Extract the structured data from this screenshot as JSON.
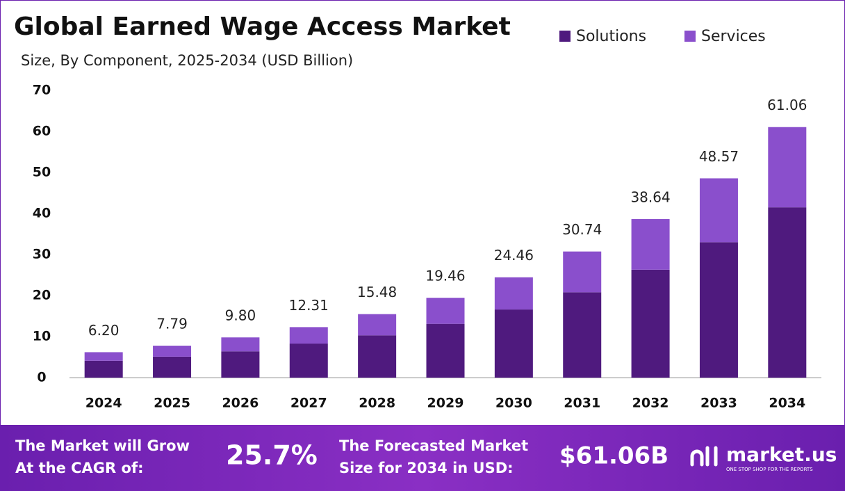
{
  "chart_data": {
    "type": "stacked_bar",
    "title": "Global Earned Wage Access Market",
    "subtitle": "Size, By Component, 2025-2034 (USD Billion)",
    "categories": [
      "2024",
      "2025",
      "2026",
      "2027",
      "2028",
      "2029",
      "2030",
      "2031",
      "2032",
      "2033",
      "2034"
    ],
    "series": [
      {
        "name": "Solutions",
        "color": "#4f1a7e",
        "values": [
          4.1,
          5.1,
          6.4,
          8.3,
          10.3,
          13.1,
          16.6,
          20.8,
          26.3,
          33.0,
          41.5
        ]
      },
      {
        "name": "Services",
        "color": "#8a4fcc",
        "values": [
          2.1,
          2.69,
          3.4,
          4.01,
          5.18,
          6.36,
          7.86,
          9.94,
          12.34,
          15.57,
          19.56
        ]
      }
    ],
    "total_values": [
      6.2,
      7.79,
      9.8,
      12.31,
      15.48,
      19.46,
      24.46,
      30.74,
      38.64,
      48.57,
      61.06
    ],
    "total_labels": [
      "6.20",
      "7.79",
      "9.80",
      "12.31",
      "15.48",
      "19.46",
      "24.46",
      "30.74",
      "38.64",
      "48.57",
      "61.06"
    ],
    "ylim": [
      0,
      70
    ],
    "yticks": [
      0,
      10,
      20,
      30,
      40,
      50,
      60,
      70
    ],
    "grid": false,
    "legend": "top-right"
  },
  "footer": {
    "cagr_label": [
      "The Market will Grow",
      "At the CAGR of:"
    ],
    "cagr_value": "25.7%",
    "size_label": [
      "The Forecasted Market",
      "Size for 2034 in USD:"
    ],
    "size_value": "$61.06B",
    "brand": "market.us",
    "tagline": "ONE STOP SHOP FOR THE REPORTS"
  }
}
